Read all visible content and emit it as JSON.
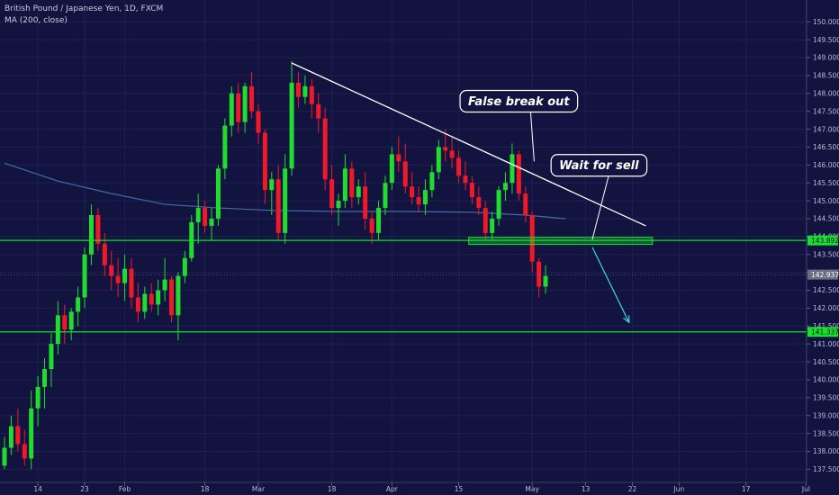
{
  "legend": {
    "title": "British Pound / Japanese Yen, 1D, FXCM",
    "indicator": "MA (200, close)"
  },
  "colors": {
    "background": "#131340",
    "up": "#1fdc2e",
    "down": "#f0192a",
    "ma": "#3e6fa8",
    "support": "#18e02c",
    "trendline": "#ffffff",
    "arrow": "#3ad6e8",
    "price_tag": "#6b6e80"
  },
  "chart_data": {
    "type": "candlestick",
    "ylim": [
      137.25,
      150.25
    ],
    "y_ticks": [
      "150.000",
      "149.500",
      "149.000",
      "148.500",
      "148.000",
      "147.500",
      "147.000",
      "146.500",
      "146.000",
      "145.500",
      "145.000",
      "144.500",
      "144.000",
      "143.500",
      "143.000",
      "142.500",
      "142.000",
      "141.500",
      "141.000",
      "140.500",
      "140.000",
      "139.500",
      "139.000",
      "138.500",
      "138.000",
      "137.500"
    ],
    "x_ticks": [
      {
        "label": "14",
        "index": 5
      },
      {
        "label": "23",
        "index": 12
      },
      {
        "label": "Feb",
        "index": 18
      },
      {
        "label": "18",
        "index": 30
      },
      {
        "label": "Mar",
        "index": 38
      },
      {
        "label": "18",
        "index": 49
      },
      {
        "label": "Apr",
        "index": 58
      },
      {
        "label": "15",
        "index": 68
      },
      {
        "label": "May",
        "index": 79
      },
      {
        "label": "13",
        "index": 87
      },
      {
        "label": "22",
        "index": 94
      },
      {
        "label": "Jun",
        "index": 101
      },
      {
        "label": "17",
        "index": 111
      },
      {
        "label": "Jul",
        "index": 120
      }
    ],
    "ohlc": [
      [
        137.6,
        138.4,
        137.5,
        138.1
      ],
      [
        138.1,
        139.0,
        137.9,
        138.7
      ],
      [
        138.7,
        139.2,
        138.0,
        138.2
      ],
      [
        138.2,
        138.6,
        137.6,
        137.8
      ],
      [
        137.8,
        139.7,
        137.5,
        139.2
      ],
      [
        139.2,
        140.1,
        138.7,
        139.8
      ],
      [
        139.8,
        140.6,
        139.2,
        140.3
      ],
      [
        140.3,
        141.3,
        139.8,
        141.0
      ],
      [
        141.0,
        142.2,
        140.7,
        141.8
      ],
      [
        141.8,
        142.1,
        141.0,
        141.4
      ],
      [
        141.4,
        142.0,
        141.1,
        141.9
      ],
      [
        141.9,
        142.6,
        141.5,
        142.3
      ],
      [
        142.3,
        143.7,
        142.0,
        143.5
      ],
      [
        143.5,
        144.9,
        143.2,
        144.6
      ],
      [
        144.6,
        144.8,
        143.6,
        143.8
      ],
      [
        143.8,
        144.1,
        142.9,
        143.2
      ],
      [
        143.2,
        143.6,
        142.5,
        142.9
      ],
      [
        142.9,
        143.4,
        142.3,
        142.7
      ],
      [
        142.7,
        143.5,
        142.2,
        143.1
      ],
      [
        143.1,
        143.4,
        142.0,
        142.3
      ],
      [
        142.3,
        142.7,
        141.6,
        141.9
      ],
      [
        141.9,
        142.6,
        141.7,
        142.4
      ],
      [
        142.4,
        142.7,
        141.9,
        142.1
      ],
      [
        142.1,
        142.8,
        141.8,
        142.5
      ],
      [
        142.5,
        143.4,
        142.2,
        142.8
      ],
      [
        142.8,
        142.9,
        141.6,
        141.8
      ],
      [
        141.8,
        143.0,
        141.1,
        142.9
      ],
      [
        142.9,
        143.6,
        142.7,
        143.4
      ],
      [
        143.4,
        144.6,
        143.3,
        144.4
      ],
      [
        144.4,
        145.2,
        143.8,
        144.8
      ],
      [
        144.8,
        145.0,
        144.1,
        144.3
      ],
      [
        144.3,
        144.8,
        143.9,
        144.5
      ],
      [
        144.5,
        146.0,
        144.3,
        145.9
      ],
      [
        145.9,
        147.3,
        145.6,
        147.1
      ],
      [
        147.1,
        148.2,
        146.8,
        148.0
      ],
      [
        148.0,
        148.3,
        146.9,
        147.2
      ],
      [
        147.2,
        148.3,
        146.9,
        148.2
      ],
      [
        148.2,
        148.6,
        147.3,
        147.5
      ],
      [
        147.5,
        147.7,
        146.6,
        146.9
      ],
      [
        146.9,
        147.0,
        144.9,
        145.3
      ],
      [
        145.3,
        145.8,
        144.6,
        145.6
      ],
      [
        145.6,
        146.0,
        143.9,
        144.1
      ],
      [
        144.1,
        146.3,
        143.8,
        145.9
      ],
      [
        145.9,
        148.9,
        145.7,
        148.3
      ],
      [
        148.3,
        148.6,
        147.6,
        147.9
      ],
      [
        147.9,
        148.5,
        147.7,
        148.2
      ],
      [
        148.2,
        148.4,
        147.3,
        147.7
      ],
      [
        147.7,
        148.0,
        146.9,
        147.3
      ],
      [
        147.3,
        147.6,
        145.3,
        145.6
      ],
      [
        145.6,
        146.0,
        144.6,
        144.8
      ],
      [
        144.8,
        145.2,
        144.3,
        145.0
      ],
      [
        145.0,
        146.3,
        144.8,
        145.9
      ],
      [
        145.9,
        146.1,
        144.8,
        145.1
      ],
      [
        145.1,
        145.6,
        144.9,
        145.4
      ],
      [
        145.4,
        145.8,
        144.2,
        144.5
      ],
      [
        144.5,
        144.7,
        143.8,
        144.1
      ],
      [
        144.1,
        145.0,
        143.9,
        144.8
      ],
      [
        144.8,
        145.7,
        144.6,
        145.5
      ],
      [
        145.5,
        146.5,
        145.3,
        146.3
      ],
      [
        146.3,
        146.8,
        145.8,
        146.1
      ],
      [
        146.1,
        146.6,
        145.2,
        145.4
      ],
      [
        145.4,
        145.8,
        144.9,
        145.1
      ],
      [
        145.1,
        145.4,
        144.7,
        144.9
      ],
      [
        144.9,
        145.6,
        144.6,
        145.3
      ],
      [
        145.3,
        146.0,
        145.1,
        145.8
      ],
      [
        145.8,
        146.7,
        145.6,
        146.5
      ],
      [
        146.5,
        147.0,
        146.1,
        146.4
      ],
      [
        146.4,
        146.8,
        145.9,
        146.2
      ],
      [
        146.2,
        146.4,
        145.5,
        145.7
      ],
      [
        145.7,
        146.1,
        145.3,
        145.5
      ],
      [
        145.5,
        145.7,
        144.9,
        145.1
      ],
      [
        145.1,
        145.4,
        144.6,
        144.8
      ],
      [
        144.8,
        145.0,
        143.9,
        144.1
      ],
      [
        144.1,
        144.7,
        143.9,
        144.5
      ],
      [
        144.5,
        145.4,
        144.3,
        145.3
      ],
      [
        145.3,
        145.8,
        145.0,
        145.5
      ],
      [
        145.5,
        146.6,
        145.2,
        146.3
      ],
      [
        146.3,
        146.4,
        145.0,
        145.2
      ],
      [
        145.2,
        145.4,
        144.4,
        144.6
      ],
      [
        144.6,
        144.7,
        143.0,
        143.3
      ],
      [
        143.3,
        143.4,
        142.3,
        142.6
      ],
      [
        142.6,
        143.2,
        142.4,
        142.9
      ]
    ],
    "ma200": [
      [
        0,
        146.05
      ],
      [
        8,
        145.55
      ],
      [
        16,
        145.2
      ],
      [
        24,
        144.9
      ],
      [
        32,
        144.8
      ],
      [
        40,
        144.73
      ],
      [
        50,
        144.7
      ],
      [
        60,
        144.7
      ],
      [
        70,
        144.68
      ],
      [
        78,
        144.6
      ],
      [
        84,
        144.5
      ]
    ],
    "trendline": {
      "from": [
        43,
        148.85
      ],
      "to": [
        96,
        144.3
      ]
    },
    "levels": [
      {
        "name": "resistance",
        "value": 143.892,
        "label": "143.892"
      },
      {
        "name": "current",
        "value": 142.937,
        "label": "142.937"
      },
      {
        "name": "support",
        "value": 141.337,
        "label": "141.337"
      }
    ],
    "sell_zone": {
      "from_index": 69.5,
      "to_index": 97,
      "low": 143.78,
      "high": 143.98
    },
    "forecast_arrow": {
      "from": [
        88,
        143.7
      ],
      "to": [
        93.5,
        141.6
      ]
    },
    "annotations": [
      {
        "name": "false-breakout",
        "text": "False break out",
        "anchor": [
          79.3,
          146.1
        ],
        "box": [
          77,
          147.78
        ]
      },
      {
        "name": "wait-for-sell",
        "text": "Wait for sell",
        "anchor": [
          88,
          143.92
        ],
        "box": [
          89,
          145.99
        ]
      }
    ]
  }
}
